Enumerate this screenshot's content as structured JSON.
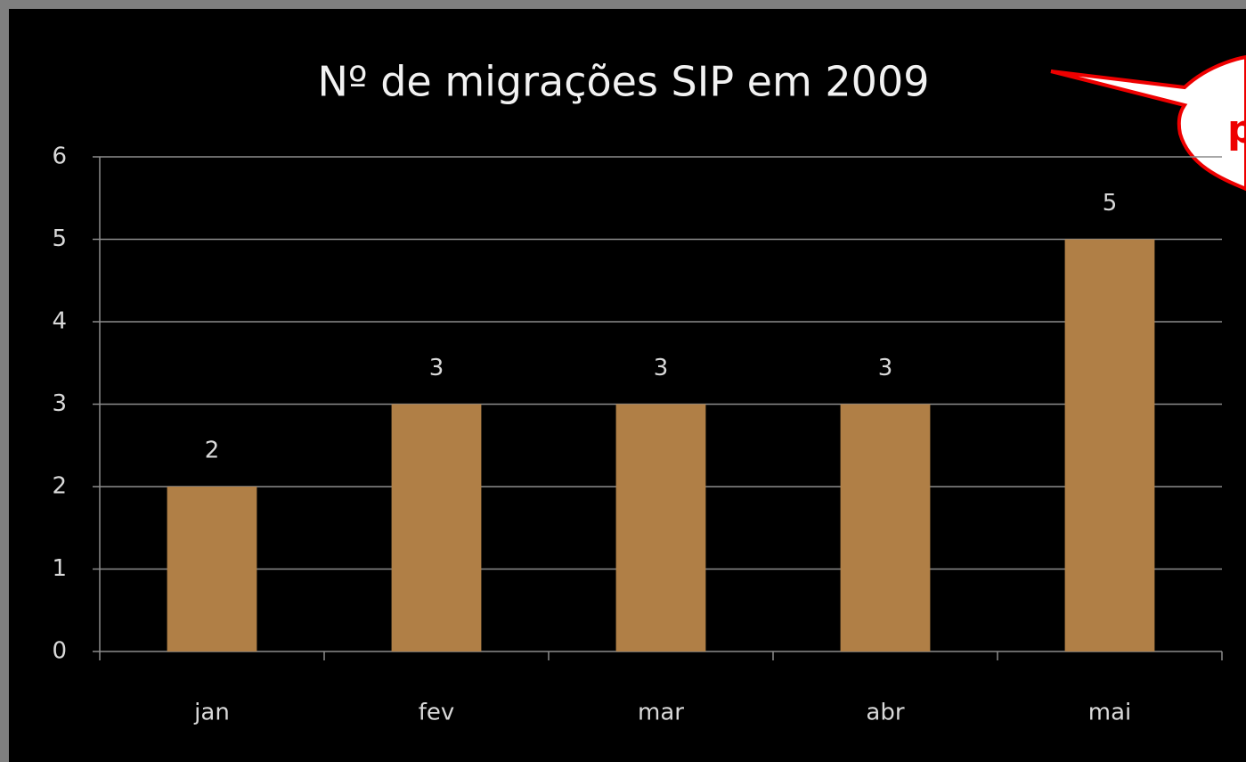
{
  "chart_data": {
    "type": "bar",
    "title": "Nº de migrações SIP em 2009",
    "categories": [
      "jan",
      "fev",
      "mar",
      "abr",
      "mai"
    ],
    "values": [
      2,
      3,
      3,
      3,
      5
    ],
    "color": "#b07f46",
    "ylim": [
      0,
      6
    ],
    "yticks": [
      0,
      1,
      2,
      3,
      4,
      5,
      6
    ],
    "grid": true,
    "annotation": "p"
  }
}
